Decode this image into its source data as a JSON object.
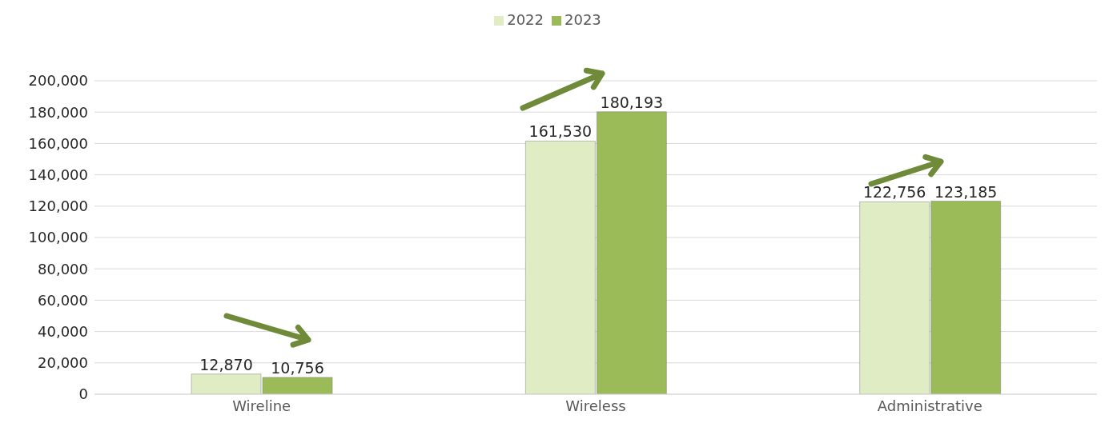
{
  "chart_data": {
    "type": "bar",
    "categories": [
      "Wireline",
      "Wireless",
      "Administrative"
    ],
    "series": [
      {
        "name": "2022",
        "color": "#dfecc4",
        "values": [
          12870,
          161530,
          122756
        ],
        "value_labels": [
          "12,870",
          "161,530",
          "122,756"
        ]
      },
      {
        "name": "2023",
        "color": "#9bbb59",
        "values": [
          10756,
          180193,
          123185
        ],
        "value_labels": [
          "10,756",
          "180,193",
          "123,185"
        ]
      }
    ],
    "ylim": [
      0,
      200000
    ],
    "yticks": [
      0,
      {
        "value": 20000,
        "label": "20,000"
      },
      {
        "value": 40000,
        "label": "40,000"
      },
      {
        "value": 60000,
        "label": "60,000"
      },
      {
        "value": 80000,
        "label": "80,000"
      },
      {
        "value": 100000,
        "label": "100,000"
      },
      {
        "value": 120000,
        "label": "120,000"
      },
      {
        "value": 140000,
        "label": "140,000"
      },
      {
        "value": 160000,
        "label": "160,000"
      },
      {
        "value": 180000,
        "label": "180,000"
      },
      {
        "value": 200000,
        "label": "200,000"
      }
    ],
    "grid": "y",
    "legend": "top"
  }
}
